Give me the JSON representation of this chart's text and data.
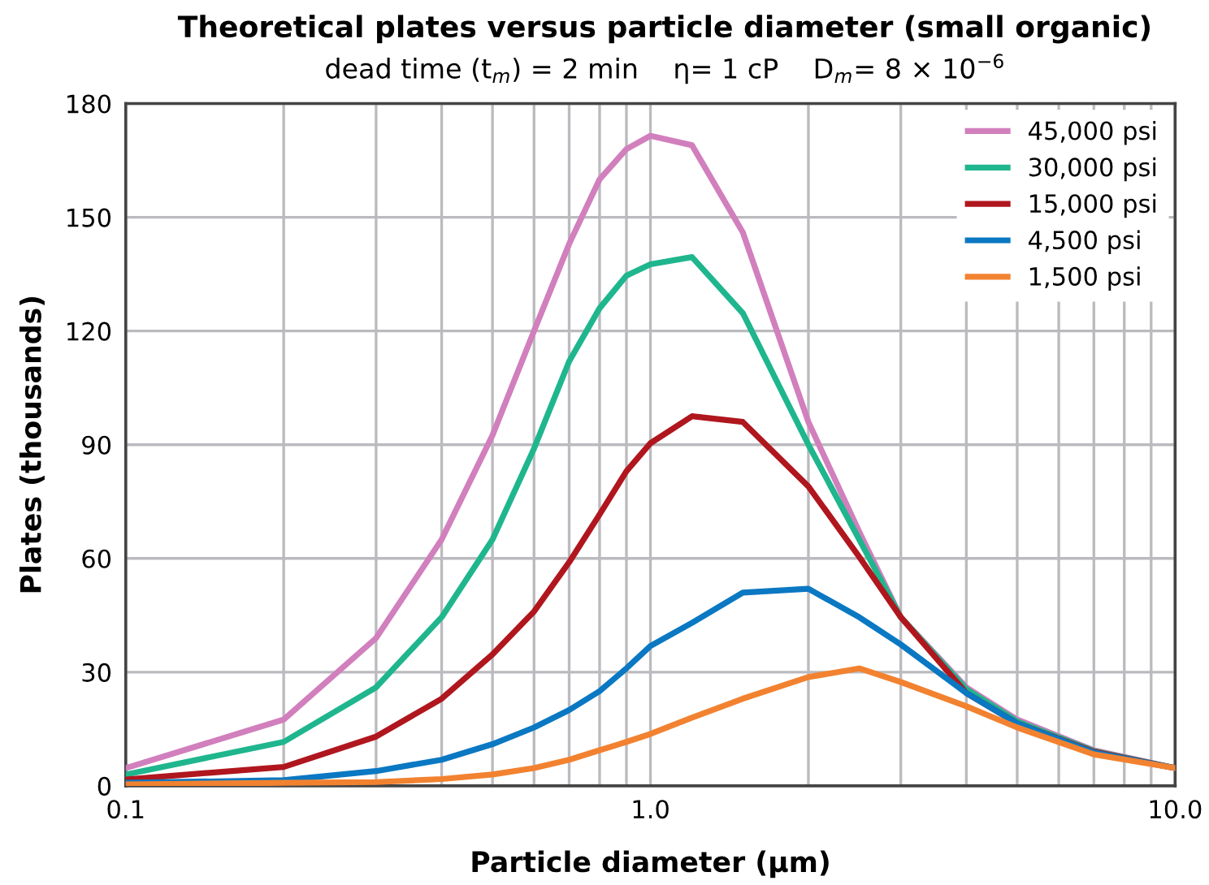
{
  "chart_data": {
    "type": "line",
    "title": "Theoretical plates versus particle diameter (small organic)",
    "subtitle": "dead time (t$_{m}$) = 2 min    η= 1 cP    D$_{m}$= 8 × 10$^{−6}$",
    "xlabel": "Particle diameter (µm)",
    "ylabel": "Plates (thousands)",
    "log": "x",
    "x": [
      0.1,
      0.2,
      0.3,
      0.4,
      0.5,
      0.6,
      0.7,
      0.8,
      0.9,
      1.0,
      1.2,
      1.5,
      2,
      2.5,
      3,
      4,
      5,
      7,
      10
    ],
    "series": [
      {
        "name": "45,000 psi",
        "color": "#d17fbd",
        "values": [
          4.7,
          17.5,
          39,
          65,
          92.5,
          120,
          143,
          160,
          168,
          171.5,
          169,
          146,
          96,
          67,
          44.5,
          26,
          17.5,
          9.4,
          4.7
        ]
      },
      {
        "name": "30,000 psi",
        "color": "#1fb68e",
        "values": [
          3,
          11.6,
          26,
          44.5,
          65,
          89,
          112,
          126,
          134.6,
          137.6,
          139.5,
          124.7,
          90,
          65,
          44.5,
          25.5,
          17,
          9.2,
          4.7
        ]
      },
      {
        "name": "15,000 psi",
        "color": "#b0161e",
        "values": [
          1.7,
          5,
          13,
          23,
          34.7,
          46,
          59,
          71.6,
          83,
          90.4,
          97.5,
          96,
          79,
          60.4,
          44.5,
          24.5,
          16.5,
          9,
          4.7
        ]
      },
      {
        "name": "4,500 psi",
        "color": "#0a78c2",
        "values": [
          0.8,
          1.5,
          3.9,
          6.9,
          11,
          15.4,
          20,
          25,
          31,
          36.9,
          43,
          51,
          52,
          44.5,
          37.3,
          24.5,
          16.5,
          8.8,
          4.7
        ]
      },
      {
        "name": "1,500 psi",
        "color": "#f28230",
        "values": [
          0.4,
          0.8,
          1.0,
          1.8,
          3,
          4.7,
          6.9,
          9.4,
          11.6,
          13.7,
          18,
          23,
          28.7,
          31,
          27.4,
          21,
          15.4,
          8.3,
          4.7
        ]
      }
    ],
    "xlim": [
      0.1,
      10
    ],
    "ylim": [
      0,
      180
    ],
    "xticks": [
      {
        "value": 0.1,
        "label": "0.1"
      },
      {
        "value": 0.2,
        "label": null
      },
      {
        "value": 0.3,
        "label": null
      },
      {
        "value": 0.4,
        "label": null
      },
      {
        "value": 0.5,
        "label": null
      },
      {
        "value": 0.6,
        "label": null
      },
      {
        "value": 0.7,
        "label": null
      },
      {
        "value": 0.8,
        "label": null
      },
      {
        "value": 0.9,
        "label": null
      },
      {
        "value": 1,
        "label": "1.0"
      },
      {
        "value": 2,
        "label": null
      },
      {
        "value": 3,
        "label": null
      },
      {
        "value": 4,
        "label": null
      },
      {
        "value": 5,
        "label": null
      },
      {
        "value": 6,
        "label": null
      },
      {
        "value": 7,
        "label": null
      },
      {
        "value": 8,
        "label": null
      },
      {
        "value": 9,
        "label": null
      },
      {
        "value": 10,
        "label": "10.0"
      }
    ],
    "yticks": [
      0,
      30,
      60,
      90,
      120,
      150,
      180
    ],
    "grid": true,
    "legend": "top right",
    "marker": "none",
    "line_style": "solid"
  }
}
